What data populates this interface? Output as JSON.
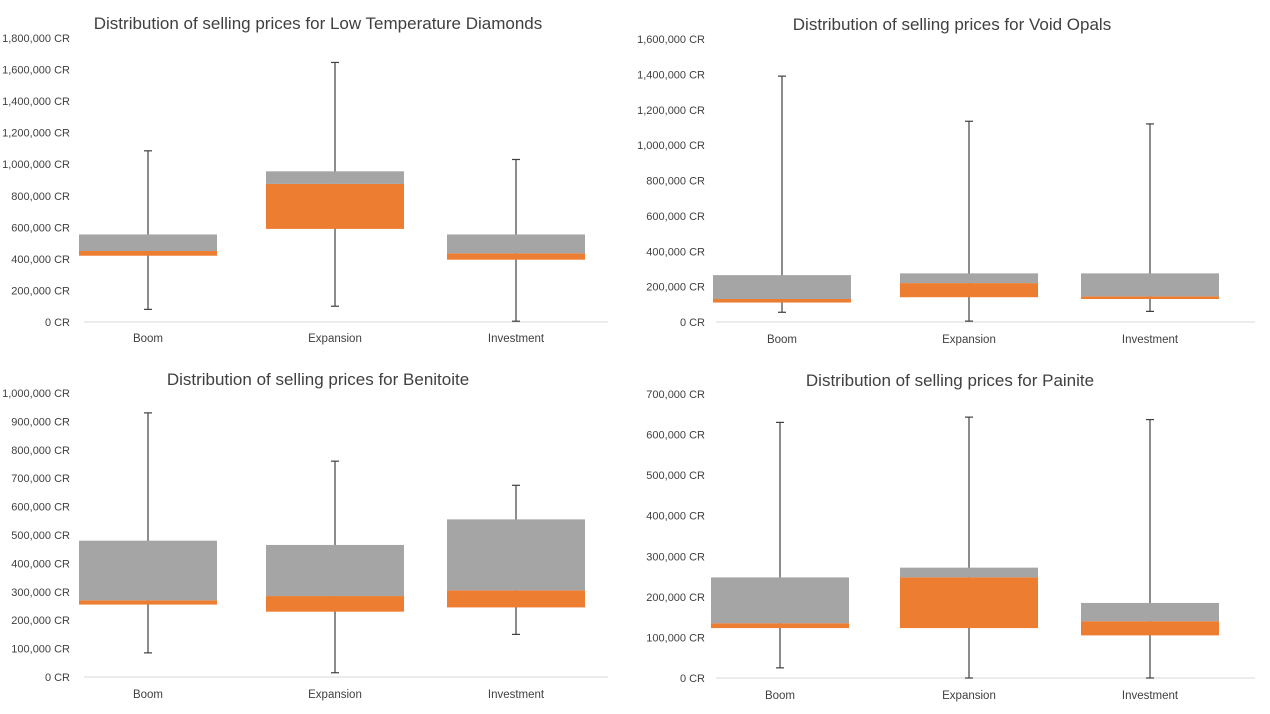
{
  "chart_data": [
    {
      "type": "box",
      "title": "Distribution of selling prices for Low Temperature Diamonds",
      "categories": [
        "Boom",
        "Expansion",
        "Investment"
      ],
      "yticks": [
        "0 CR",
        "200,000 CR",
        "400,000 CR",
        "600,000 CR",
        "800,000 CR",
        "1,000,000 CR",
        "1,200,000 CR",
        "1,400,000 CR",
        "1,600,000 CR",
        "1,800,000 CR"
      ],
      "ylim": [
        0,
        1800000
      ],
      "grid": false,
      "stats": [
        {
          "min": 80000,
          "q1": 420000,
          "median": 450000,
          "q3": 555000,
          "max": 1085000
        },
        {
          "min": 100000,
          "q1": 590000,
          "median": 875000,
          "q3": 955000,
          "max": 1645000
        },
        {
          "min": 5000,
          "q1": 395000,
          "median": 435000,
          "q3": 555000,
          "max": 1030000
        }
      ],
      "colors": {
        "lower_box": "#ED7D31",
        "upper_box": "#A5A5A5",
        "whisker": "#404040"
      }
    },
    {
      "type": "box",
      "title": "Distribution of selling prices for Void Opals",
      "categories": [
        "Boom",
        "Expansion",
        "Investment"
      ],
      "yticks": [
        "0 CR",
        "200,000 CR",
        "400,000 CR",
        "600,000 CR",
        "800,000 CR",
        "1,000,000 CR",
        "1,200,000 CR",
        "1,400,000 CR",
        "1,600,000 CR"
      ],
      "ylim": [
        0,
        1600000
      ],
      "grid": false,
      "stats": [
        {
          "min": 55000,
          "q1": 110000,
          "median": 130000,
          "q3": 265000,
          "max": 1390000
        },
        {
          "min": 5000,
          "q1": 140000,
          "median": 220000,
          "q3": 275000,
          "max": 1135000
        },
        {
          "min": 60000,
          "q1": 130000,
          "median": 145000,
          "q3": 275000,
          "max": 1120000
        }
      ],
      "colors": {
        "lower_box": "#ED7D31",
        "upper_box": "#A5A5A5",
        "whisker": "#404040"
      }
    },
    {
      "type": "box",
      "title": "Distribution of selling prices for Benitoite",
      "categories": [
        "Boom",
        "Expansion",
        "Investment"
      ],
      "yticks": [
        "0 CR",
        "100,000 CR",
        "200,000 CR",
        "300,000 CR",
        "400,000 CR",
        "500,000 CR",
        "600,000 CR",
        "700,000 CR",
        "800,000 CR",
        "900,000 CR",
        "1,000,000 CR"
      ],
      "ylim": [
        0,
        1000000
      ],
      "grid": false,
      "stats": [
        {
          "min": 85000,
          "q1": 255000,
          "median": 270000,
          "q3": 480000,
          "max": 930000
        },
        {
          "min": 15000,
          "q1": 230000,
          "median": 285000,
          "q3": 465000,
          "max": 760000
        },
        {
          "min": 150000,
          "q1": 245000,
          "median": 305000,
          "q3": 555000,
          "max": 675000
        }
      ],
      "colors": {
        "lower_box": "#ED7D31",
        "upper_box": "#A5A5A5",
        "whisker": "#404040"
      }
    },
    {
      "type": "box",
      "title": "Distribution of selling prices for Painite",
      "categories": [
        "Boom",
        "Expansion",
        "Investment"
      ],
      "yticks": [
        "0 CR",
        "100,000 CR",
        "200,000 CR",
        "300,000 CR",
        "400,000 CR",
        "500,000 CR",
        "600,000 CR",
        "700,000 CR"
      ],
      "ylim": [
        0,
        700000
      ],
      "grid": false,
      "stats": [
        {
          "min": 25000,
          "q1": 123000,
          "median": 135000,
          "q3": 248000,
          "max": 630000
        },
        {
          "min": 0,
          "q1": 123000,
          "median": 248000,
          "q3": 272000,
          "max": 643000
        },
        {
          "min": 0,
          "q1": 105000,
          "median": 140000,
          "q3": 185000,
          "max": 637000
        }
      ],
      "colors": {
        "lower_box": "#ED7D31",
        "upper_box": "#A5A5A5",
        "whisker": "#404040"
      }
    }
  ]
}
